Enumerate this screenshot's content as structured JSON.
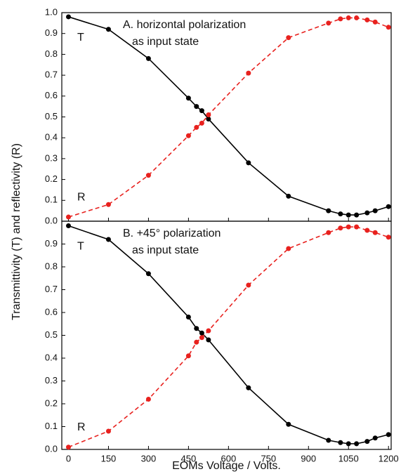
{
  "chart_data": [
    {
      "type": "line",
      "annotations": [
        "A. horizontal polarization",
        "as input state"
      ],
      "y_label": "Transmittivity (T) and reflectivity (R)",
      "x": [
        0,
        150,
        300,
        450,
        480,
        500,
        525,
        675,
        825,
        975,
        1020,
        1050,
        1080,
        1120,
        1150,
        1200
      ],
      "series": [
        {
          "name": "T",
          "color": "#000000",
          "dashed": false,
          "values": [
            0.98,
            0.92,
            0.78,
            0.59,
            0.55,
            0.53,
            0.49,
            0.28,
            0.12,
            0.05,
            0.035,
            0.03,
            0.03,
            0.04,
            0.05,
            0.07
          ]
        },
        {
          "name": "R",
          "color": "#e8211e",
          "dashed": true,
          "values": [
            0.02,
            0.08,
            0.22,
            0.41,
            0.45,
            0.47,
            0.51,
            0.71,
            0.88,
            0.95,
            0.97,
            0.975,
            0.975,
            0.965,
            0.955,
            0.93
          ]
        }
      ],
      "xlim": [
        -25,
        1210
      ],
      "xticks": [
        0,
        150,
        300,
        450,
        600,
        750,
        900,
        1050,
        1200
      ],
      "ylim": [
        0,
        1
      ],
      "yticks": [
        {
          "value": 0,
          "label": "0.0"
        },
        0.1,
        0.2,
        0.3,
        0.4,
        0.5,
        0.6,
        0.7,
        0.8,
        0.9,
        {
          "value": 1,
          "label": "1.0"
        }
      ]
    },
    {
      "type": "line",
      "annotations": [
        "B. +45° polarization",
        "as input state"
      ],
      "x_label": "EOMs Voltage / Volts.",
      "x": [
        0,
        150,
        300,
        450,
        480,
        500,
        525,
        675,
        825,
        975,
        1020,
        1050,
        1080,
        1120,
        1150,
        1200
      ],
      "series": [
        {
          "name": "T",
          "color": "#000000",
          "dashed": false,
          "values": [
            0.98,
            0.92,
            0.77,
            0.58,
            0.53,
            0.51,
            0.48,
            0.27,
            0.11,
            0.04,
            0.03,
            0.025,
            0.025,
            0.035,
            0.05,
            0.065
          ]
        },
        {
          "name": "R",
          "color": "#e8211e",
          "dashed": true,
          "values": [
            0.01,
            0.08,
            0.22,
            0.41,
            0.47,
            0.49,
            0.52,
            0.72,
            0.88,
            0.95,
            0.97,
            0.975,
            0.975,
            0.96,
            0.95,
            0.93
          ]
        }
      ],
      "xlim": [
        -25,
        1210
      ],
      "xticks": [
        0,
        150,
        300,
        450,
        600,
        750,
        900,
        1050,
        1200
      ],
      "ylim": [
        0,
        1
      ],
      "yticks": [
        {
          "value": 0,
          "label": "0.0"
        },
        0.1,
        0.2,
        0.3,
        0.4,
        0.5,
        0.6,
        0.7,
        0.8,
        0.9
      ]
    }
  ]
}
